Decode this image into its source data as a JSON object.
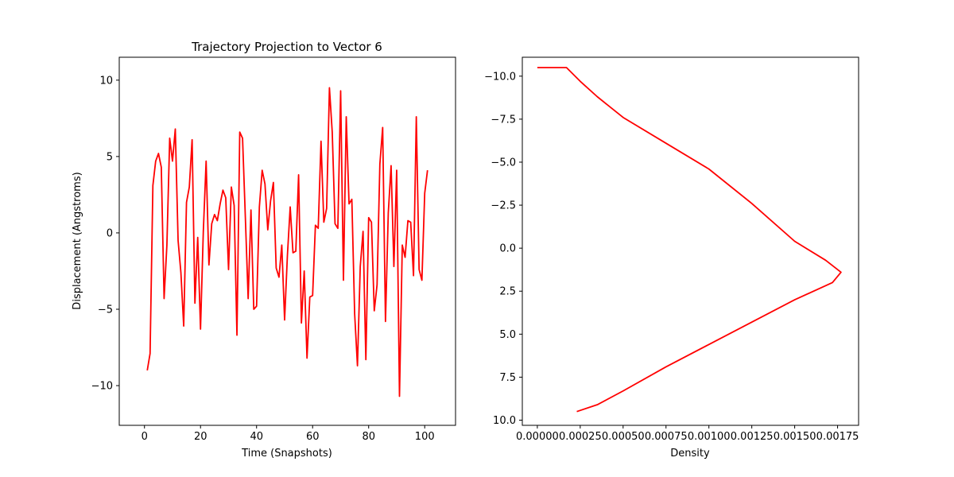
{
  "chart_data": [
    {
      "type": "line",
      "title": "Trajectory Projection to Vector 6",
      "xlabel": "Time (Snapshots)",
      "ylabel": "Displacement (Angstroms)",
      "xlim": [
        -9,
        111
      ],
      "ylim": [
        -12.6,
        11.5
      ],
      "xticks": [
        0,
        20,
        40,
        60,
        80,
        100
      ],
      "xtick_labels": [
        "0",
        "20",
        "40",
        "60",
        "80",
        "100"
      ],
      "yticks": [
        10,
        5,
        0,
        -5,
        -10
      ],
      "ytick_labels": [
        "10",
        "5",
        "0",
        "−5",
        "−10"
      ],
      "grid": false,
      "series": [
        {
          "color": "#ff0000",
          "x": [
            1,
            2,
            3,
            4,
            5,
            6,
            7,
            8,
            9,
            10,
            11,
            12,
            13,
            14,
            15,
            16,
            17,
            18,
            19,
            20,
            21,
            22,
            23,
            24,
            25,
            26,
            27,
            28,
            29,
            30,
            31,
            32,
            33,
            34,
            35,
            36,
            37,
            38,
            39,
            40,
            41,
            42,
            43,
            44,
            45,
            46,
            47,
            48,
            49,
            50,
            51,
            52,
            53,
            54,
            55,
            56,
            57,
            58,
            59,
            60,
            61,
            62,
            63,
            64,
            65,
            66,
            67,
            68,
            69,
            70,
            71,
            72,
            73,
            74,
            75,
            76,
            77,
            78,
            79,
            80,
            81,
            82,
            83,
            84,
            85,
            86,
            87,
            88,
            89,
            90,
            91,
            92,
            93,
            94,
            95,
            96,
            97,
            98,
            99,
            100,
            101
          ],
          "y": [
            -9.0,
            -7.9,
            3.1,
            4.7,
            5.2,
            4.3,
            -4.3,
            -0.8,
            6.2,
            4.7,
            6.8,
            -0.5,
            -2.6,
            -6.1,
            2.0,
            3.0,
            6.1,
            -4.6,
            -0.3,
            -6.3,
            0.1,
            4.7,
            -2.1,
            0.6,
            1.2,
            0.8,
            1.9,
            2.8,
            2.3,
            -2.4,
            3.0,
            1.8,
            -6.7,
            6.6,
            6.2,
            1.0,
            -4.3,
            1.5,
            -5.0,
            -4.8,
            1.7,
            4.1,
            3.2,
            0.2,
            2.1,
            3.3,
            -2.3,
            -2.9,
            -0.8,
            -5.7,
            -1.5,
            1.7,
            -1.3,
            -1.2,
            3.8,
            -5.9,
            -2.5,
            -8.2,
            -4.2,
            -4.1,
            0.5,
            0.3,
            6.0,
            0.7,
            1.6,
            9.5,
            6.6,
            0.6,
            0.3,
            9.3,
            -3.1,
            7.6,
            1.9,
            2.2,
            -5.3,
            -8.7,
            -2.2,
            0.1,
            -8.3,
            1.0,
            0.7,
            -5.1,
            -3.4,
            4.5,
            6.9,
            -5.8,
            1.3,
            4.4,
            -2.2,
            4.1,
            -10.7,
            -0.8,
            -1.6,
            0.8,
            0.7,
            -2.8,
            7.6,
            -2.4,
            -3.1,
            2.6,
            4.1
          ]
        }
      ]
    },
    {
      "type": "line",
      "title": "",
      "xlabel": "Density",
      "ylabel": "",
      "xlim": [
        -8.75e-05,
        0.0018725
      ],
      "ylim": [
        10.3,
        -11.1
      ],
      "y_axis_inverted": true,
      "xticks": [
        0,
        0.00025,
        0.0005,
        0.00075,
        0.001,
        0.00125,
        0.0015,
        0.00175
      ],
      "xtick_labels": [
        "0.00000",
        "0.00025",
        "0.00050",
        "0.00075",
        "0.00100",
        "0.00125",
        "0.00150",
        "0.00175"
      ],
      "yticks": [
        -10,
        -7.5,
        -5,
        -2.5,
        0,
        2.5,
        5,
        7.5,
        10
      ],
      "ytick_labels": [
        "−10.0",
        "−7.5",
        "−5.0",
        "−2.5",
        "0.0",
        "2.5",
        "5.0",
        "7.5",
        "10.0"
      ],
      "grid": false,
      "series": [
        {
          "color": "#ff0000",
          "x": [
            0.0,
            0.00017,
            0.00025,
            0.00035,
            0.0005,
            0.00075,
            0.001,
            0.00125,
            0.0015,
            0.00168,
            0.00177,
            0.00172,
            0.0015,
            0.00125,
            0.001,
            0.00075,
            0.0005,
            0.00035,
            0.00023
          ],
          "y": [
            -10.5,
            -10.5,
            -9.7,
            -8.8,
            -7.6,
            -6.1,
            -4.6,
            -2.6,
            -0.4,
            0.7,
            1.4,
            2.0,
            3.0,
            4.3,
            5.6,
            6.9,
            8.3,
            9.1,
            9.5
          ]
        }
      ]
    }
  ]
}
